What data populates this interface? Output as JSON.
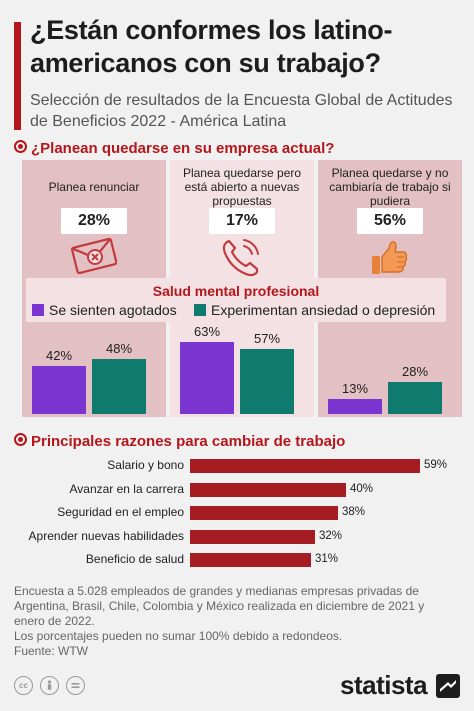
{
  "title": "¿Están conformes los latino-americanos con su trabajo?",
  "subtitle": "Selección de resultados de la Encuesta Global de Actitudes de Beneficios 2022 - América Latina",
  "section1_heading": "¿Planean quedarse en su empresa actual?",
  "section2_heading": "Principales razones para cambiar de trabajo",
  "colors": {
    "brand_red": "#b5161b",
    "purple": "#7b35d1",
    "teal": "#0f7a6e",
    "panel_dark": "#e3c0c3",
    "panel_light": "#f3e1e3",
    "reason_bar": "#a51d22"
  },
  "chart_data": [
    {
      "type": "bar",
      "title": "Salud mental profesional",
      "categories": [
        {
          "label": "Planea renunciar",
          "share": "28%",
          "icon": "envelope-x-icon"
        },
        {
          "label": "Planea quedarse pero está abierto a nuevas propuestas",
          "share": "17%",
          "icon": "phone-icon"
        },
        {
          "label": "Planea quedarse y no cambiaría de trabajo si pudiera",
          "share": "56%",
          "icon": "thumbs-up-icon"
        }
      ],
      "series": [
        {
          "name": "Se sienten agotados",
          "values": [
            42,
            63,
            13
          ],
          "labels": [
            "42%",
            "63%",
            "13%"
          ]
        },
        {
          "name": "Experimentan ansiedad o depresión",
          "values": [
            48,
            57,
            28
          ],
          "labels": [
            "48%",
            "57%",
            "28%"
          ]
        }
      ],
      "unit": "%"
    },
    {
      "type": "bar",
      "orientation": "horizontal",
      "title": "Principales razones para cambiar de trabajo",
      "categories": [
        "Salario y bono",
        "Avanzar en la carrera",
        "Seguridad en el empleo",
        "Aprender nuevas habilidades",
        "Beneficio de salud"
      ],
      "values": [
        59,
        40,
        38,
        32,
        31
      ],
      "labels": [
        "59%",
        "40%",
        "38%",
        "32%",
        "31%"
      ],
      "unit": "%"
    }
  ],
  "footnote": {
    "line1": "Encuesta a 5.028 empleados de grandes y medianas empresas privadas de Argentina, Brasil, Chile, Colombia y México realizada en diciembre de 2021 y enero de 2022.",
    "line2": "Los porcentajes pueden no sumar 100% debido a redondeos.",
    "source": "Fuente: WTW"
  },
  "brand": "statista"
}
